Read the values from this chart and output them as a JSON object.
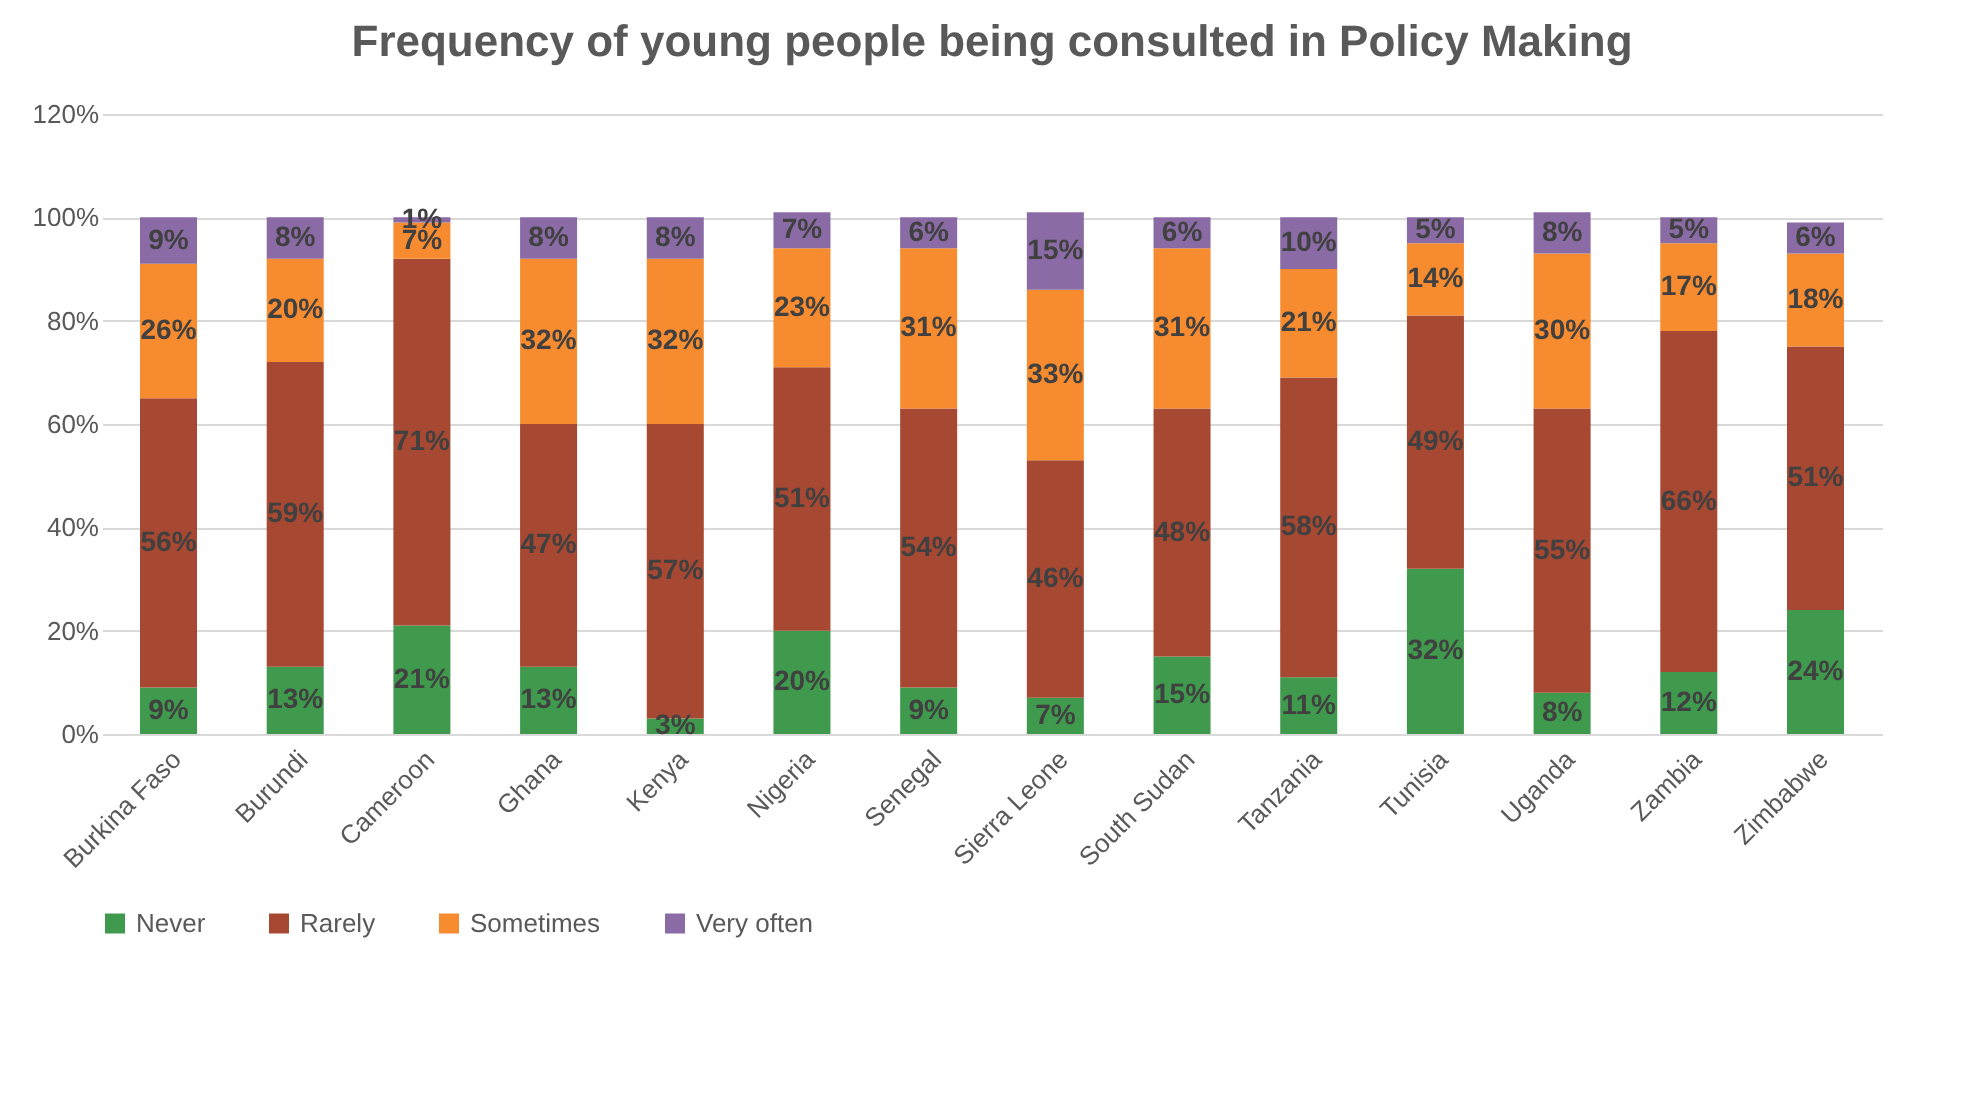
{
  "chart_data": {
    "type": "bar",
    "title": "Frequency of young people being consulted in Policy Making",
    "stacked": true,
    "categories": [
      "Burkina Faso",
      "Burundi",
      "Cameroon",
      "Ghana",
      "Kenya",
      "Nigeria",
      "Senegal",
      "Sierra Leone",
      "South Sudan",
      "Tanzania",
      "Tunisia",
      "Uganda",
      "Zambia",
      "Zimbabwe"
    ],
    "series": [
      {
        "name": "Never",
        "color": "#3f9a4d",
        "values": [
          9,
          13,
          21,
          13,
          3,
          20,
          9,
          7,
          15,
          11,
          32,
          8,
          12,
          24
        ],
        "value_labels": [
          "9%",
          "13%",
          "21%",
          "13%",
          "3%",
          "20%",
          "9%",
          "7%",
          "15%",
          "11%",
          "32%",
          "8%",
          "12%",
          "24%"
        ]
      },
      {
        "name": "Rarely",
        "color": "#a64832",
        "values": [
          56,
          59,
          71,
          47,
          57,
          51,
          54,
          46,
          48,
          58,
          49,
          55,
          66,
          51
        ],
        "value_labels": [
          "56%",
          "59%",
          "71%",
          "47%",
          "57%",
          "51%",
          "54%",
          "46%",
          "48%",
          "58%",
          "49%",
          "55%",
          "66%",
          "51%"
        ]
      },
      {
        "name": "Sometimes",
        "color": "#f68b2f",
        "values": [
          26,
          20,
          7,
          32,
          32,
          23,
          31,
          33,
          31,
          21,
          14,
          30,
          17,
          18
        ],
        "value_labels": [
          "26%",
          "20%",
          "7%",
          "32%",
          "32%",
          "23%",
          "31%",
          "33%",
          "31%",
          "21%",
          "14%",
          "30%",
          "17%",
          "18%"
        ]
      },
      {
        "name": "Very often",
        "color": "#8a6ba5",
        "values": [
          9,
          8,
          1,
          8,
          8,
          7,
          6,
          15,
          6,
          10,
          5,
          8,
          5,
          6
        ],
        "value_labels": [
          "9%",
          "8%",
          "1%",
          "8%",
          "8%",
          "7%",
          "6%",
          "15%",
          "6%",
          "10%",
          "5%",
          "8%",
          "5%",
          "6%"
        ]
      }
    ],
    "ylim": [
      0,
      120
    ],
    "yticks": [
      {
        "value": 0,
        "label": "0%"
      },
      {
        "value": 20,
        "label": "20%"
      },
      {
        "value": 40,
        "label": "40%"
      },
      {
        "value": 60,
        "label": "60%"
      },
      {
        "value": 80,
        "label": "80%"
      },
      {
        "value": 100,
        "label": "100%"
      },
      {
        "value": 120,
        "label": "120%"
      }
    ],
    "grid": "y",
    "legend": "bottom"
  }
}
